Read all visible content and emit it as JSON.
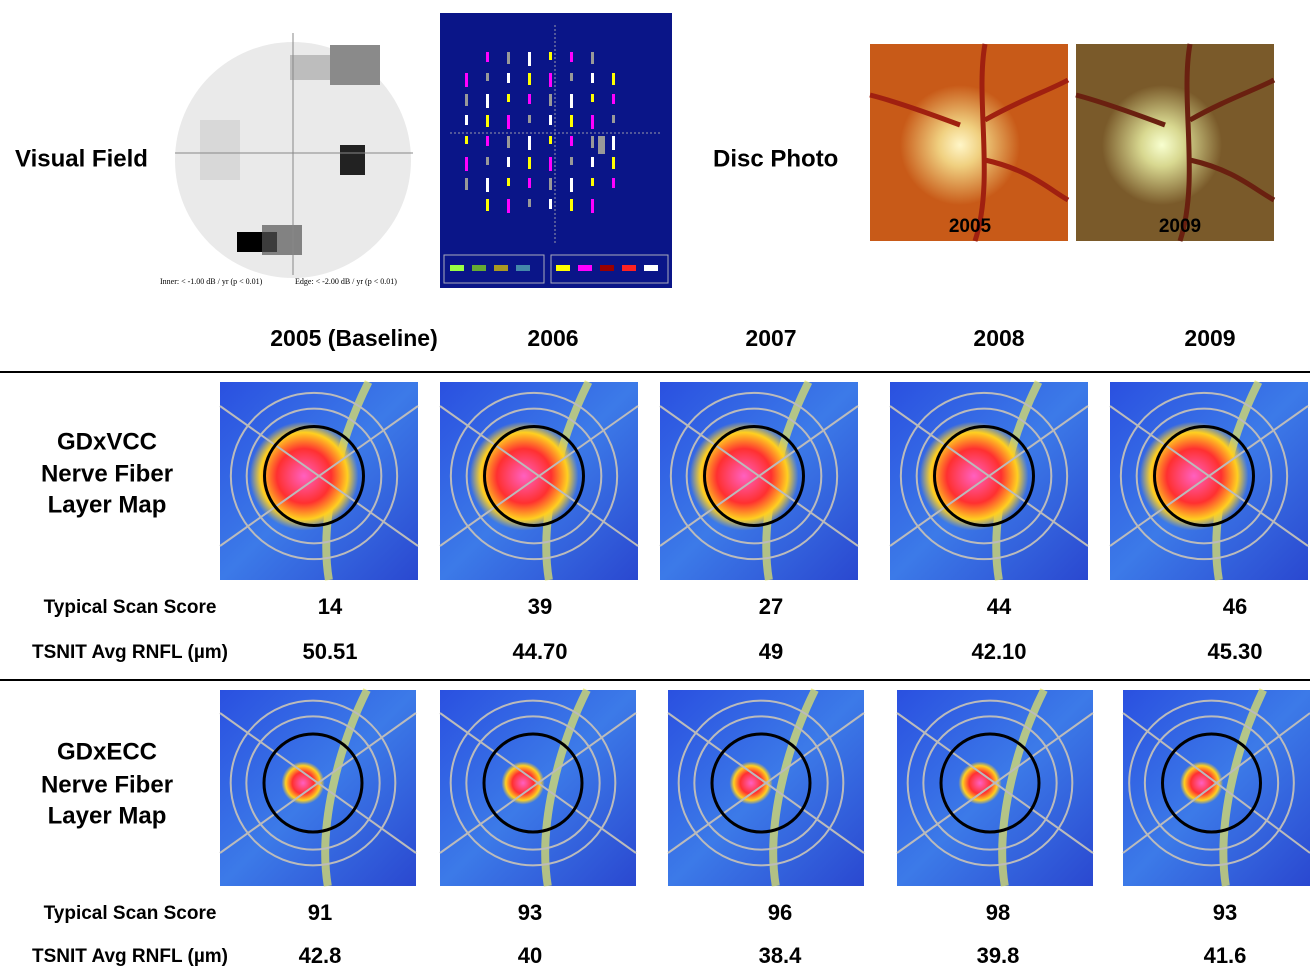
{
  "visual_field": {
    "label": "Visual Field",
    "legend": [
      "Inner: < -1.00 dB / yr (p < 0.01)",
      "Edge: < -2.00 dB / yr (p < 0.01)"
    ]
  },
  "disc_photo": {
    "label": "Disc Photo",
    "years": [
      "2005",
      "2009"
    ]
  },
  "years": [
    "2005 (Baseline)",
    "2006",
    "2007",
    "2008",
    "2009"
  ],
  "sections": [
    {
      "title": [
        "GDxVCC",
        "Nerve Fiber",
        "Layer Map"
      ],
      "rows": [
        {
          "label": "Typical Scan Score",
          "values": [
            "14",
            "39",
            "27",
            "44",
            "46"
          ]
        },
        {
          "label": "TSNIT Avg RNFL (µm)",
          "values": [
            "50.51",
            "44.70",
            "49",
            "42.10",
            "45.30"
          ]
        }
      ]
    },
    {
      "title": [
        "GDxECC",
        "Nerve Fiber",
        "Layer Map"
      ],
      "rows": [
        {
          "label": "Typical Scan Score",
          "values": [
            "91",
            "93",
            "96",
            "98",
            "93"
          ]
        },
        {
          "label": "TSNIT Avg RNFL (µm)",
          "values": [
            "42.8",
            "40",
            "38.4",
            "39.8",
            "41.6"
          ]
        }
      ]
    }
  ]
}
